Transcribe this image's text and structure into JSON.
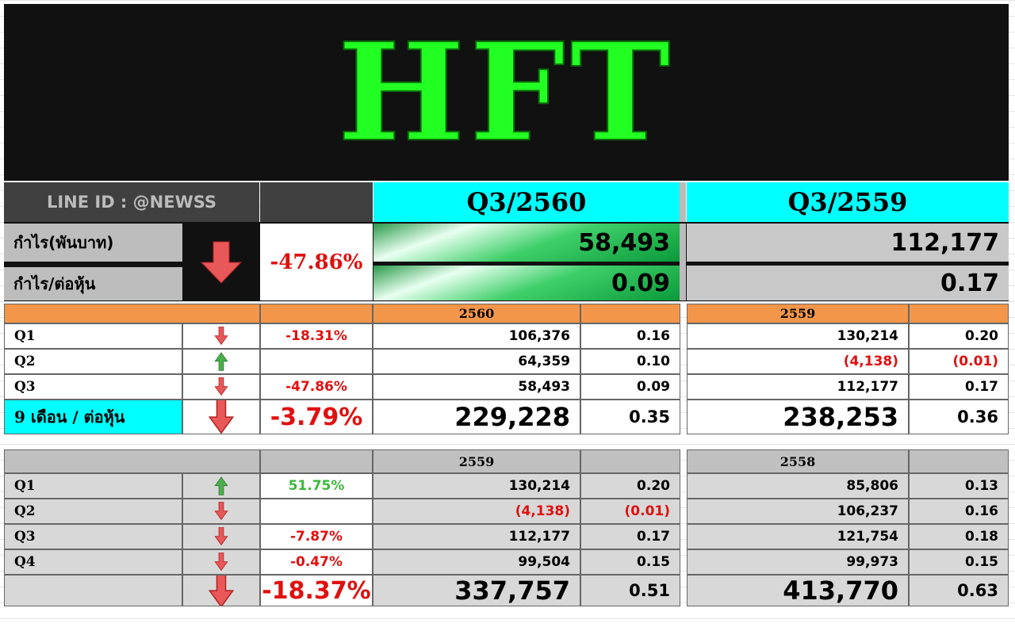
{
  "title": "HFT",
  "header": {
    "line_id": "LINE ID : @NEWSS",
    "q_current": "Q3/2560",
    "q_previous": "Q3/2559"
  },
  "summary": {
    "profit_label": "กำไร(พันบาท)",
    "eps_label": "กำไร/ต่อหุ้น",
    "change": "-47.86%",
    "profit_current": "58,493",
    "eps_current": "0.09",
    "profit_previous": "112,177",
    "eps_previous": "0.17",
    "trend": "down"
  },
  "table1": {
    "year_current": "2560",
    "year_previous": "2559",
    "rows": [
      {
        "label": "Q1",
        "trend": "down",
        "change": "-18.31%",
        "p1": "106,376",
        "e1": "0.16",
        "p2": "130,214",
        "e2": "0.20"
      },
      {
        "label": "Q2",
        "trend": "up",
        "change": "",
        "p1": "64,359",
        "e1": "0.10",
        "p2": "(4,138)",
        "e2": "(0.01)"
      },
      {
        "label": "Q3",
        "trend": "down",
        "change": "-47.86%",
        "p1": "58,493",
        "e1": "0.09",
        "p2": "112,177",
        "e2": "0.17"
      }
    ],
    "total": {
      "label": "9 เดือน / ต่อหุ้น",
      "trend": "down",
      "change": "-3.79%",
      "p1": "229,228",
      "e1": "0.35",
      "p2": "238,253",
      "e2": "0.36"
    }
  },
  "table2": {
    "year_current": "2559",
    "year_previous": "2558",
    "rows": [
      {
        "label": "Q1",
        "trend": "up",
        "change": "51.75%",
        "p1": "130,214",
        "e1": "0.20",
        "p2": "85,806",
        "e2": "0.13"
      },
      {
        "label": "Q2",
        "trend": "down",
        "change": "",
        "p1": "(4,138)",
        "e1": "(0.01)",
        "p2": "106,237",
        "e2": "0.16"
      },
      {
        "label": "Q3",
        "trend": "down",
        "change": "-7.87%",
        "p1": "112,177",
        "e1": "0.17",
        "p2": "121,754",
        "e2": "0.18"
      },
      {
        "label": "Q4",
        "trend": "down",
        "change": "-0.47%",
        "p1": "99,504",
        "e1": "0.15",
        "p2": "99,973",
        "e2": "0.15"
      }
    ],
    "total": {
      "label": "",
      "trend": "down",
      "change": "-18.37%",
      "p1": "337,757",
      "e1": "0.51",
      "p2": "413,770",
      "e2": "0.63"
    }
  },
  "colors": {
    "title_green": "#22ff22",
    "cyan": "#00ffff",
    "orange": "#f4964a",
    "red": "#e01010",
    "green": "#3cb83c"
  }
}
